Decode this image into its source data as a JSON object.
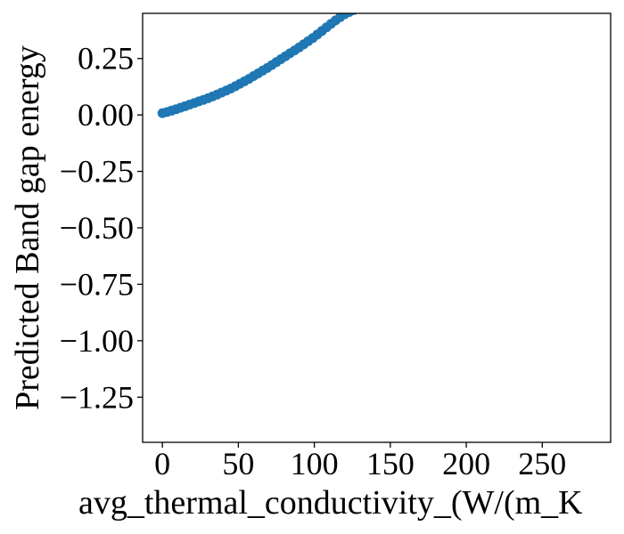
{
  "chart_data": {
    "type": "scatter",
    "title": "",
    "xlabel": "avg_thermal_conductivity_(W/(m_K",
    "ylabel": "Predicted Band gap energy",
    "xlim": [
      -13,
      295
    ],
    "ylim": [
      -1.45,
      0.45
    ],
    "x_ticks": [
      0,
      50,
      100,
      150,
      200,
      250
    ],
    "y_ticks": [
      0.25,
      0.0,
      -0.25,
      -0.5,
      -0.75,
      -1.0,
      -1.25
    ],
    "x_tick_labels": [
      "0",
      "50",
      "100",
      "150",
      "200",
      "250"
    ],
    "y_tick_labels": [
      "0.25",
      "0.00",
      "−0.25",
      "−0.50",
      "−0.75",
      "−1.00",
      "−1.25"
    ],
    "grid": false,
    "legend": "none",
    "marker_color": "#1f77b4",
    "series": [
      {
        "x": [
          0,
          3,
          6,
          9,
          12,
          15,
          18,
          21,
          24,
          27,
          30,
          33,
          36,
          39,
          42,
          45,
          48,
          51,
          54,
          57,
          60,
          63,
          66,
          69,
          72,
          75,
          78,
          81,
          84,
          87,
          90,
          93,
          96,
          99,
          102,
          105,
          108,
          111,
          114,
          117,
          120,
          123,
          126
        ],
        "y": [
          0.008,
          0.013,
          0.019,
          0.025,
          0.032,
          0.039,
          0.046,
          0.053,
          0.06,
          0.067,
          0.074,
          0.082,
          0.09,
          0.099,
          0.108,
          0.117,
          0.127,
          0.138,
          0.149,
          0.16,
          0.172,
          0.184,
          0.196,
          0.208,
          0.221,
          0.234,
          0.247,
          0.26,
          0.273,
          0.286,
          0.299,
          0.313,
          0.327,
          0.341,
          0.356,
          0.372,
          0.388,
          0.404,
          0.419,
          0.433,
          0.446,
          0.456,
          0.465
        ]
      }
    ]
  }
}
